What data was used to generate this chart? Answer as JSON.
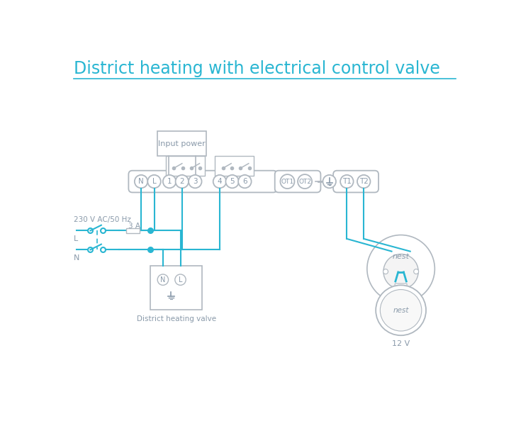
{
  "title": "District heating with electrical control valve",
  "title_color": "#29b6d2",
  "title_fontsize": 17,
  "bg_color": "#ffffff",
  "line_color": "#29b6d2",
  "diagram_color": "#b0b8c0",
  "diagram_color2": "#8a9aaa",
  "terminal_labels": [
    "N",
    "L",
    "1",
    "2",
    "3",
    "4",
    "5",
    "6"
  ],
  "ot_labels": [
    "OT1",
    "OT2"
  ],
  "t_labels": [
    "T1",
    "T2"
  ],
  "input_power_label": "Input power",
  "valve_label": "District heating valve",
  "voltage_label": "230 V AC/50 Hz",
  "fuse_label": "3 A",
  "L_label": "L",
  "N_label": "N",
  "nest_label": "nest",
  "nest_label2": "nest",
  "twelve_v_label": "12 V"
}
